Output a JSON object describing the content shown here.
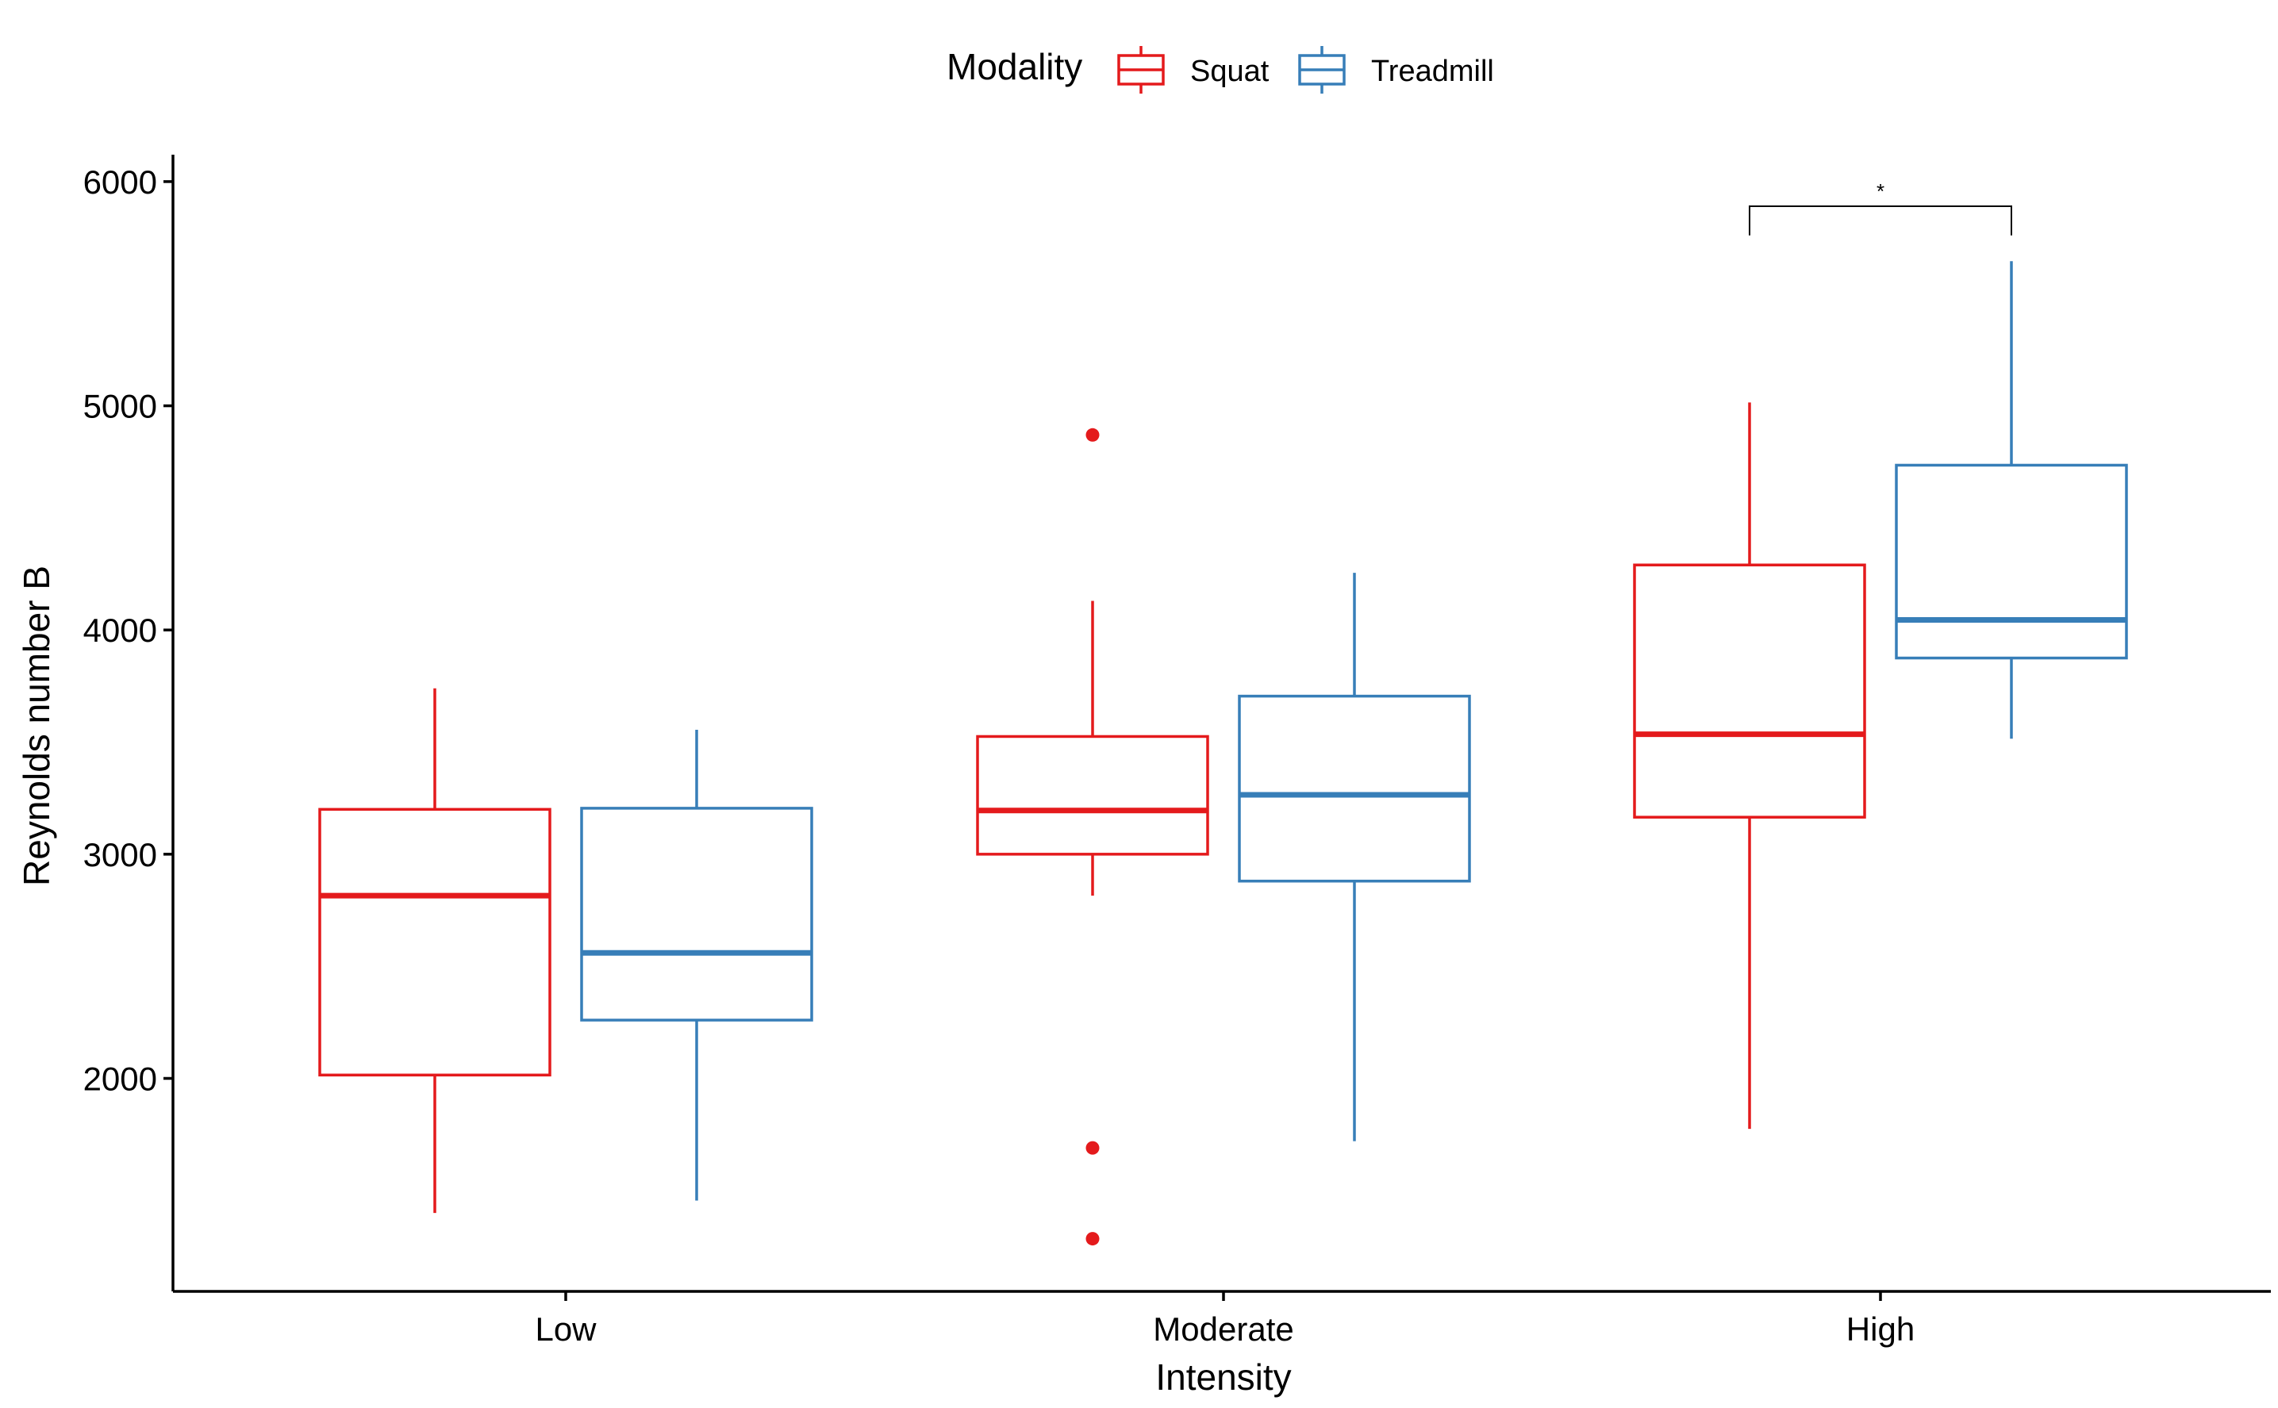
{
  "chart_data": {
    "type": "boxplot",
    "xlabel": "Intensity",
    "ylabel": "Reynolds number B",
    "categories": [
      "Low",
      "Moderate",
      "High"
    ],
    "ylim": [
      1050,
      6120
    ],
    "yticks": [
      2000,
      3000,
      4000,
      5000,
      6000
    ],
    "grid": false,
    "legend": {
      "title": "Modality",
      "position": "top",
      "entries": [
        "Squat",
        "Treadmill"
      ]
    },
    "series": [
      {
        "name": "Squat",
        "color": "#E41A1C",
        "boxes": [
          {
            "category": "Low",
            "min": 1400,
            "q1": 2015,
            "median": 2815,
            "q3": 3200,
            "max": 3740,
            "outliers": []
          },
          {
            "category": "Moderate",
            "min": 2815,
            "q1": 3000,
            "median": 3195,
            "q3": 3525,
            "max": 4130,
            "outliers": [
              4870,
              1690,
              1285
            ]
          },
          {
            "category": "High",
            "min": 1775,
            "q1": 3165,
            "median": 3535,
            "q3": 4290,
            "max": 5015,
            "outliers": []
          }
        ]
      },
      {
        "name": "Treadmill",
        "color": "#377EB8",
        "boxes": [
          {
            "category": "Low",
            "min": 1455,
            "q1": 2260,
            "median": 2560,
            "q3": 3205,
            "max": 3555,
            "outliers": []
          },
          {
            "category": "Moderate",
            "min": 1720,
            "q1": 2880,
            "median": 3265,
            "q3": 3705,
            "max": 4255,
            "outliers": []
          },
          {
            "category": "High",
            "min": 3515,
            "q1": 3875,
            "median": 4045,
            "q3": 4735,
            "max": 5645,
            "outliers": []
          }
        ]
      }
    ],
    "annotations": [
      {
        "type": "significance-bracket",
        "category": "High",
        "label": "*",
        "y_bottom": 5760,
        "y_top": 5890
      }
    ]
  }
}
